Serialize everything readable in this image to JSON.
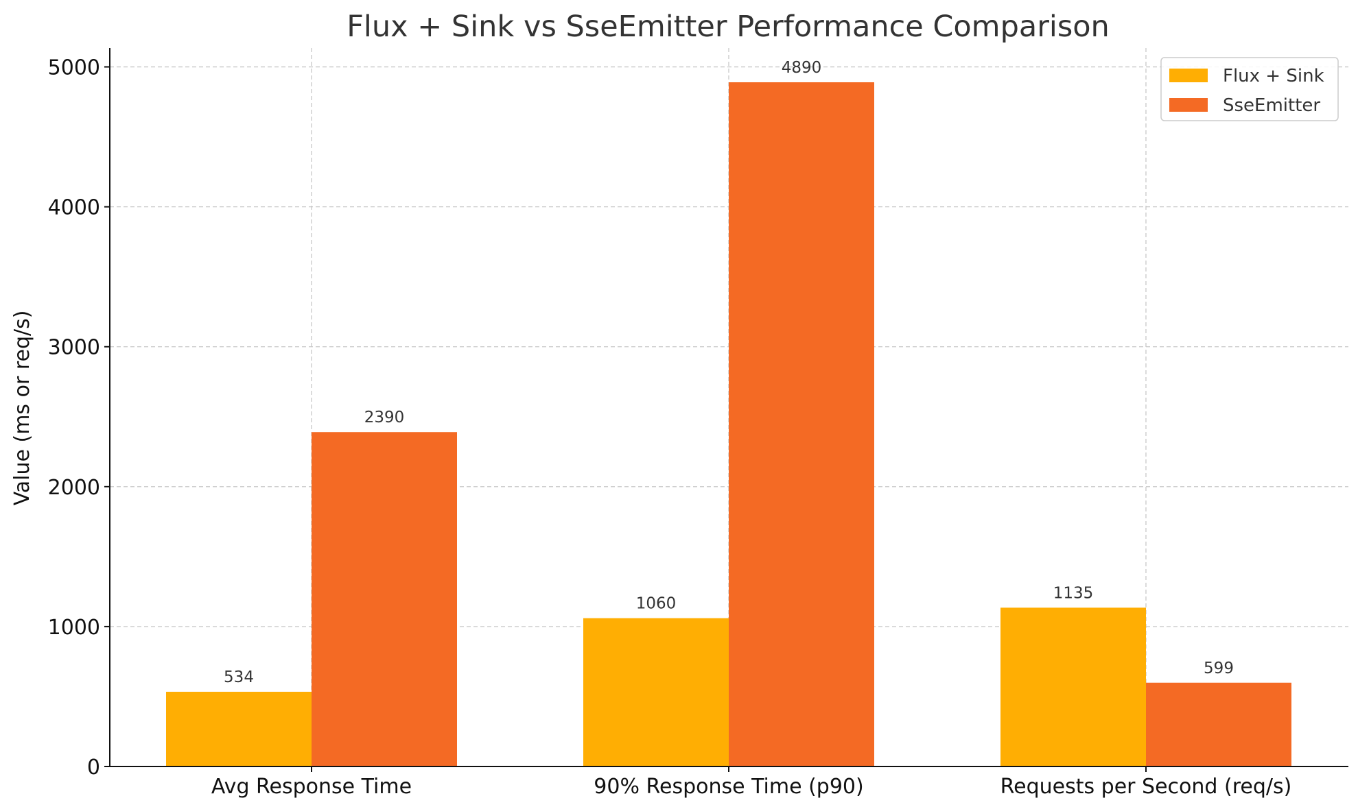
{
  "chart_data": {
    "type": "bar",
    "title": "Flux + Sink vs SseEmitter Performance Comparison",
    "xlabel": "",
    "ylabel": "Value (ms or req/s)",
    "categories": [
      "Avg Response Time",
      "90% Response Time (p90)",
      "Requests per Second (req/s)"
    ],
    "series": [
      {
        "name": "Flux + Sink",
        "values": [
          534,
          1060,
          1135
        ],
        "color": "#FFAE03"
      },
      {
        "name": "SseEmitter",
        "values": [
          2390,
          4890,
          599
        ],
        "color": "#F46A24"
      }
    ],
    "ylim": [
      0,
      5135
    ],
    "yticks": [
      0,
      1000,
      2000,
      3000,
      4000,
      5000
    ],
    "grid": true,
    "legend_position": "top-right",
    "data_labels": true
  }
}
